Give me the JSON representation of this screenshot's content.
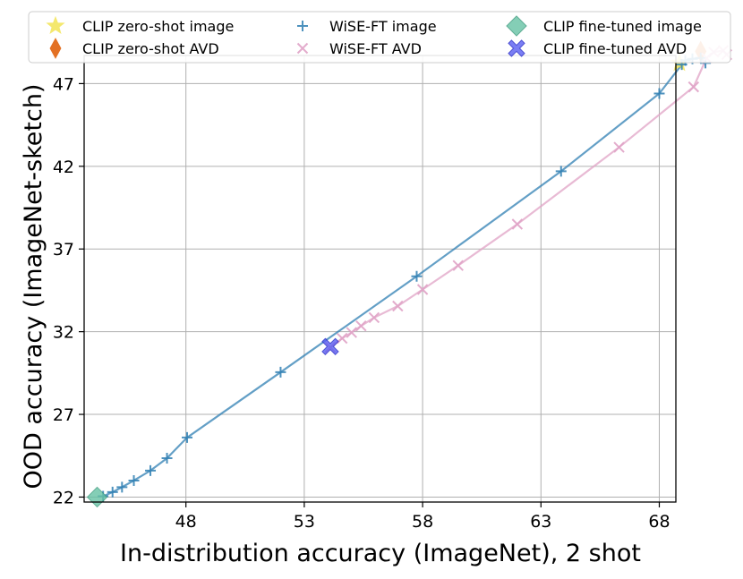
{
  "chart_data": {
    "type": "scatter",
    "xlabel": "In-distribution accuracy (ImageNet), 2 shot",
    "ylabel": "OOD accuracy (ImageNet-sketch)",
    "xlim": [
      43.7,
      68.7
    ],
    "ylim": [
      21.7,
      48.7
    ],
    "xticks": [
      48,
      53,
      58,
      63,
      68
    ],
    "yticks": [
      22,
      27,
      32,
      37,
      42,
      47
    ],
    "grid": true,
    "legend_position": "top",
    "series": [
      {
        "name": "CLIP zero-shot image",
        "marker": "star",
        "color": "#f2e34a",
        "points": [
          [
            68.85,
            48.25
          ]
        ]
      },
      {
        "name": "CLIP zero-shot AVD",
        "marker": "diamond-thin",
        "color": "#e0620d",
        "points": [
          [
            69.75,
            48.95
          ]
        ]
      },
      {
        "name": "WiSE-FT image",
        "marker": "plus",
        "color": "#2f7fb3",
        "line": true,
        "points": [
          [
            44.5,
            22.05
          ],
          [
            44.9,
            22.3
          ],
          [
            45.3,
            22.6
          ],
          [
            45.8,
            23.0
          ],
          [
            46.5,
            23.6
          ],
          [
            47.2,
            24.35
          ],
          [
            48.05,
            25.6
          ],
          [
            52.0,
            29.55
          ],
          [
            57.75,
            35.35
          ],
          [
            63.85,
            41.7
          ],
          [
            68.0,
            46.4
          ],
          [
            68.95,
            48.15
          ],
          [
            69.1,
            48.4
          ],
          [
            69.4,
            48.5
          ],
          [
            69.75,
            48.55
          ],
          [
            69.95,
            48.25
          ]
        ]
      },
      {
        "name": "WiSE-FT AVD",
        "marker": "x",
        "color": "#e0a3c6",
        "line": true,
        "points": [
          [
            54.1,
            31.05
          ],
          [
            54.6,
            31.6
          ],
          [
            55.0,
            31.95
          ],
          [
            55.4,
            32.35
          ],
          [
            55.95,
            32.85
          ],
          [
            56.95,
            33.55
          ],
          [
            58.0,
            34.55
          ],
          [
            59.5,
            36.0
          ],
          [
            62.0,
            38.5
          ],
          [
            66.3,
            43.15
          ],
          [
            69.45,
            46.8
          ],
          [
            70.0,
            48.55
          ],
          [
            70.3,
            48.9
          ],
          [
            70.7,
            49.0
          ],
          [
            70.85,
            48.75
          ]
        ]
      },
      {
        "name": "CLIP fine-tuned image",
        "marker": "diamond",
        "color": "#66c2a5",
        "points": [
          [
            44.25,
            22.0
          ]
        ]
      },
      {
        "name": "CLIP fine-tuned AVD",
        "marker": "x-bold",
        "color": "#5a5ef2",
        "points": [
          [
            54.1,
            31.1
          ]
        ]
      }
    ]
  }
}
